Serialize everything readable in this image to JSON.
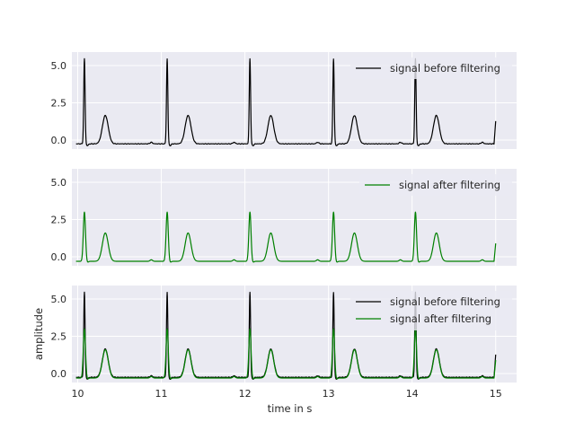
{
  "chart_data": {
    "type": "line",
    "xlabel": "time in s",
    "ylabel": "amplitude",
    "x_ticks": [
      "10",
      "11",
      "12",
      "13",
      "14",
      "15"
    ],
    "y_ticks": [
      "0.0",
      "2.5",
      "5.0"
    ],
    "xlim": [
      9.93,
      15.25
    ],
    "ylim": [
      -0.6,
      5.9
    ],
    "grid": true,
    "colors": {
      "before": "#000000",
      "after": "#008000",
      "panel_bg": "#eaeaf2"
    },
    "series_labels": {
      "before": "signal before filtering",
      "after": "signal after filtering"
    },
    "beats": {
      "r_peak_times": [
        10.08,
        11.07,
        12.06,
        13.06,
        14.04
      ],
      "t_wave_times": [
        10.33,
        11.32,
        12.31,
        13.31,
        14.29
      ],
      "p_wave_times": [
        9.9,
        10.88,
        11.87,
        12.87,
        13.86,
        14.84
      ],
      "r_amplitude_before": 5.45,
      "r_amplitude_after": 3.05,
      "t_amplitude": 1.65,
      "baseline": -0.25,
      "end_time": 15.0,
      "end_value_before": 1.25,
      "end_value_after": 0.9
    },
    "panels": [
      {
        "series": [
          "before"
        ],
        "legend": "top-right"
      },
      {
        "series": [
          "after"
        ],
        "legend": "top-right"
      },
      {
        "series": [
          "before",
          "after"
        ],
        "legend": "top-right"
      }
    ]
  }
}
